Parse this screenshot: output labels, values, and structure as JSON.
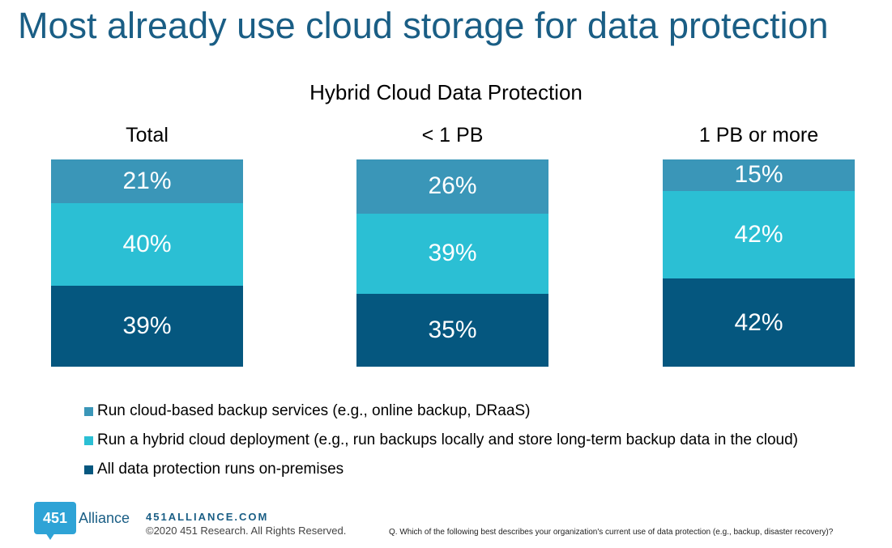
{
  "header": {
    "title": "Most already use cloud storage for data protection"
  },
  "chart_data": {
    "type": "bar",
    "stacked": true,
    "orientation": "vertical",
    "normalized": true,
    "title": "Hybrid Cloud Data Protection",
    "categories": [
      "Total",
      "< 1 PB",
      "1 PB or more"
    ],
    "series": [
      {
        "name": "Run cloud-based backup services (e.g., online backup, DRaaS)",
        "values": [
          21,
          26,
          15
        ],
        "labels": [
          "21%",
          "26%",
          "15%"
        ],
        "color": "#3a96b8"
      },
      {
        "name": "Run a hybrid cloud deployment  (e.g., run backups locally and store long-term backup data in the cloud)",
        "values": [
          40,
          39,
          42
        ],
        "labels": [
          "40%",
          "39%",
          "42%"
        ],
        "color": "#2bbfd4"
      },
      {
        "name": "All data protection runs on-premises",
        "values": [
          39,
          35,
          42
        ],
        "labels": [
          "39%",
          "35%",
          "42%"
        ],
        "color": "#05577f"
      }
    ],
    "legend_position": "bottom-left",
    "grid": false
  },
  "footer": {
    "logo_number": "451",
    "logo_text": "Alliance",
    "url": "451ALLIANCE.COM",
    "copyright": "©2020 451 Research. All Rights Reserved.",
    "question": "Q. Which of the following best describes your organization's current use of data protection (e.g., backup, disaster recovery)?"
  }
}
